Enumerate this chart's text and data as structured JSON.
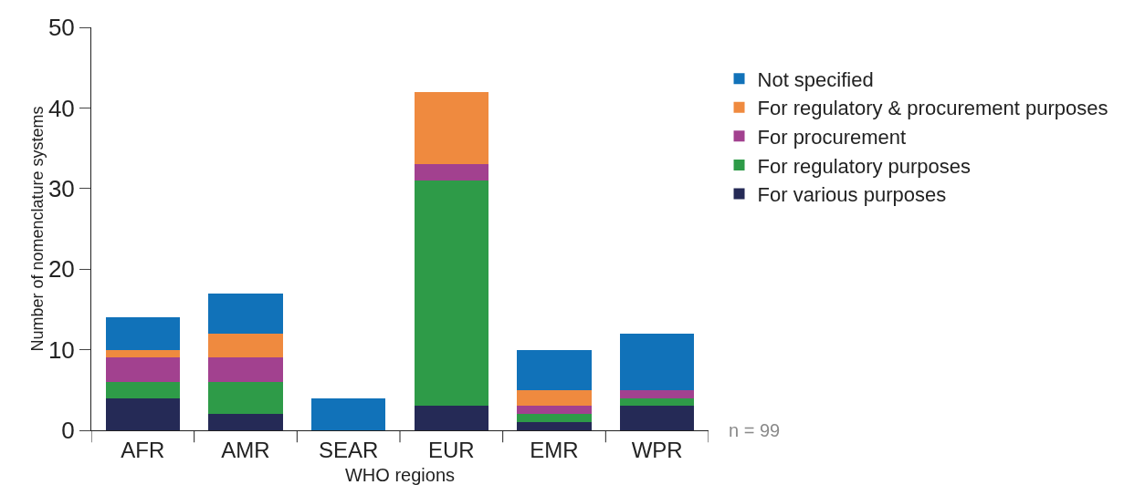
{
  "chart_data": {
    "type": "bar",
    "stacked": true,
    "xlabel": "WHO regions",
    "ylabel": "Number of nomenclature systems",
    "categories": [
      "AFR",
      "AMR",
      "SEAR",
      "EUR",
      "EMR",
      "WPR"
    ],
    "series": [
      {
        "name": "For various purposes",
        "color": "#252a56",
        "values": [
          4,
          2,
          0,
          3,
          1,
          3
        ]
      },
      {
        "name": "For regulatory purposes",
        "color": "#2e9b48",
        "values": [
          2,
          4,
          0,
          28,
          1,
          1
        ]
      },
      {
        "name": "For procurement",
        "color": "#a2418f",
        "values": [
          3,
          3,
          0,
          2,
          1,
          1
        ]
      },
      {
        "name": "For regulatory & procurement purposes",
        "color": "#ef8a3f",
        "values": [
          1,
          3,
          0,
          9,
          2,
          0
        ]
      },
      {
        "name": "Not specified",
        "color": "#1172b9",
        "values": [
          4,
          5,
          4,
          0,
          5,
          7
        ]
      }
    ],
    "ylim": [
      0,
      50
    ],
    "yticks": [
      0,
      10,
      20,
      30,
      40,
      50
    ],
    "grid": false,
    "legend": "right",
    "annotations": [
      "n = 99"
    ]
  }
}
